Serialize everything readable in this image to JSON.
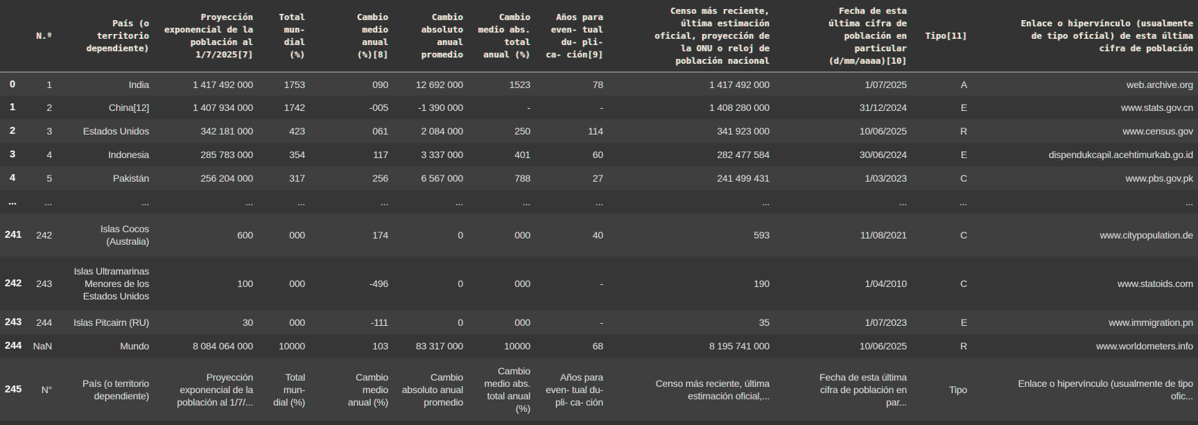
{
  "colors": {
    "background": "#333333",
    "header_background": "#333333",
    "row_light": "#3f3f3f",
    "row_dark": "#363636",
    "header_text": "#efe8d8",
    "body_text": "#d9d9d9",
    "index_text": "#f5f5f5",
    "divider": "#7a7a7a"
  },
  "table": {
    "index_header": "",
    "columns": [
      {
        "id": "num",
        "label": "N.º"
      },
      {
        "id": "pais",
        "label": "País (o\nterritorio\ndependiente)"
      },
      {
        "id": "proyeccion",
        "label": "Proyección\nexponencial de la\npoblación al\n1/7/2025[7]"
      },
      {
        "id": "total-mundial",
        "label": "Total\nmun-\ndial\n(%)"
      },
      {
        "id": "cambio-medio-anual",
        "label": "Cambio\nmedio\nanual\n(%)[8]"
      },
      {
        "id": "cambio-absoluto",
        "label": "Cambio\nabsoluto\nanual\npromedio"
      },
      {
        "id": "cambio-medio-abs",
        "label": "Cambio\nmedio abs.\ntotal\nanual (%)"
      },
      {
        "id": "anos-duplicacion",
        "label": "Años para\neven- tual\ndu- pli-\nca- ción[9]"
      },
      {
        "id": "censo",
        "label": "Censo más reciente,\núltima estimación\noficial, proyección de\nla ONU o reloj de\npoblación nacional"
      },
      {
        "id": "fecha",
        "label": "Fecha de esta\núltima cifra de\npoblación en\nparticular\n(d/mm/aaaa)[10]"
      },
      {
        "id": "tipo",
        "label": "Tipo[11]"
      },
      {
        "id": "enlace",
        "label": "Enlace o hipervínculo (usualmente\nde tipo oficial) de esta última\ncifra de población"
      }
    ],
    "rows": [
      {
        "index": "0",
        "cells": [
          "1",
          "India",
          "1 417 492 000",
          "1753",
          "090",
          "12 692 000",
          "1523",
          "78",
          "1 417 492 000",
          "1/07/2025",
          "A",
          "web.archive.org"
        ]
      },
      {
        "index": "1",
        "cells": [
          "2",
          "China[12]",
          "1 407 934 000",
          "1742",
          "-005",
          "-1 390 000",
          "-",
          "-",
          "1 408 280 000",
          "31/12/2024",
          "E",
          "www.stats.gov.cn"
        ]
      },
      {
        "index": "2",
        "cells": [
          "3",
          "Estados Unidos",
          "342 181 000",
          "423",
          "061",
          "2 084 000",
          "250",
          "114",
          "341 923 000",
          "10/06/2025",
          "R",
          "www.census.gov"
        ]
      },
      {
        "index": "3",
        "cells": [
          "4",
          "Indonesia",
          "285 783 000",
          "354",
          "117",
          "3 337 000",
          "401",
          "60",
          "282 477 584",
          "30/06/2024",
          "E",
          "dispendukcapil.acehtimurkab.go.id"
        ]
      },
      {
        "index": "4",
        "cells": [
          "5",
          "Pakistán",
          "256 204 000",
          "317",
          "256",
          "6 567 000",
          "788",
          "27",
          "241 499 431",
          "1/03/2023",
          "C",
          "www.pbs.gov.pk"
        ]
      },
      {
        "index": "...",
        "cells": [
          "...",
          "...",
          "...",
          "...",
          "...",
          "...",
          "...",
          "...",
          "...",
          "...",
          "...",
          "..."
        ]
      },
      {
        "index": "241",
        "cells": [
          "242",
          "Islas Cocos\n(Australia)",
          "600",
          "000",
          "174",
          "0",
          "000",
          "40",
          "593",
          "11/08/2021",
          "C",
          "www.citypopulation.de"
        ]
      },
      {
        "index": "242",
        "cells": [
          "243",
          "Islas Ultramarinas\nMenores de los\nEstados Unidos",
          "100",
          "000",
          "-496",
          "0",
          "000",
          "-",
          "190",
          "1/04/2010",
          "C",
          "www.statoids.com"
        ]
      },
      {
        "index": "243",
        "cells": [
          "244",
          "Islas Pitcairn (RU)",
          "30",
          "000",
          "-111",
          "0",
          "000",
          "-",
          "35",
          "1/07/2023",
          "E",
          "www.immigration.pn"
        ]
      },
      {
        "index": "244",
        "cells": [
          "NaN",
          "Mundo",
          "8 084 064 000",
          "10000",
          "103",
          "83 317 000",
          "10000",
          "68",
          "8 195 741 000",
          "10/06/2025",
          "R",
          "www.worldometers.info"
        ]
      },
      {
        "index": "245",
        "cells": [
          "N°",
          "País (o territorio\ndependiente)",
          "Proyección\nexponencial de la\npoblación al 1/7/...",
          "Total\nmun-\ndial (%)",
          "Cambio\nmedio\nanual (%)",
          "Cambio\nabsoluto anual\npromedio",
          "Cambio\nmedio abs.\ntotal anual\n(%)",
          "Años para\neven- tual du-\npli- ca- ción",
          "Censo más reciente, última\nestimación oficial,...",
          "Fecha de esta última\ncifra de población en\npar...",
          "Tipo",
          "Enlace o hipervínculo (usualmente de tipo\nofic..."
        ]
      }
    ]
  }
}
